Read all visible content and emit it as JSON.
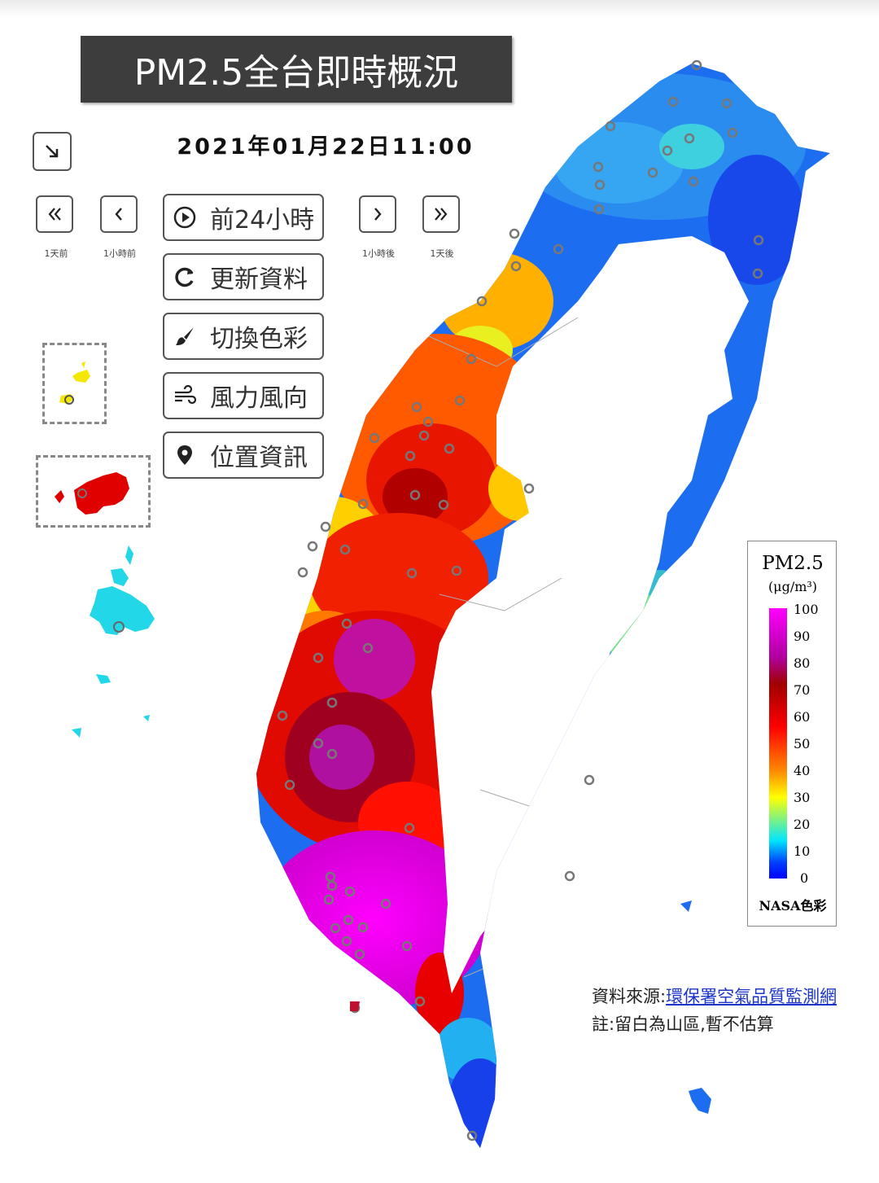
{
  "header": {
    "title": "PM2.5全台即時概況",
    "timestamp": "2021年01月22日11:00"
  },
  "nav": {
    "back_day": {
      "icon": "double-chevron-left-icon",
      "caption": "1天前"
    },
    "back_hour": {
      "icon": "chevron-left-icon",
      "caption": "1小時前"
    },
    "fwd_hour": {
      "icon": "chevron-right-icon",
      "caption": "1小時後"
    },
    "fwd_day": {
      "icon": "double-chevron-right-icon",
      "caption": "1天後"
    }
  },
  "buttons": [
    {
      "label": "前24小時",
      "icon": "play-circle-icon"
    },
    {
      "label": "更新資料",
      "icon": "refresh-icon"
    },
    {
      "label": "切換色彩",
      "icon": "paint-brush-icon"
    },
    {
      "label": "風力風向",
      "icon": "wind-icon"
    },
    {
      "label": "位置資訊",
      "icon": "location-pin-icon"
    }
  ],
  "legend": {
    "title": "PM2.5",
    "unit": "(μg/m³)",
    "ticks": [
      "100",
      "90",
      "80",
      "70",
      "60",
      "50",
      "40",
      "30",
      "20",
      "10",
      "0"
    ],
    "footer": "NASA色彩",
    "colors": [
      "#ff00ff",
      "#a00000",
      "#ff0000",
      "#ff8800",
      "#ffff00",
      "#00e5ff",
      "#0000ff"
    ]
  },
  "source": {
    "prefix": "資料來源:",
    "link": "環保署空氣品質監測網"
  },
  "note": "註:留白為山區,暫不估算"
}
